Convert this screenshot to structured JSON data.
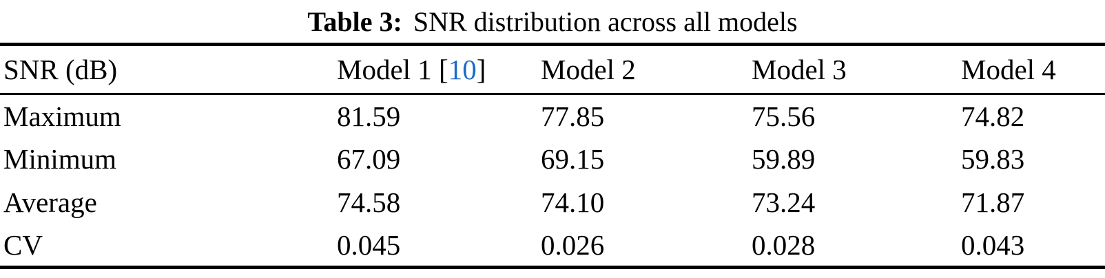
{
  "caption": {
    "label": "Table 3:",
    "text": "SNR distribution across all models"
  },
  "table": {
    "header": {
      "col0": "SNR (dB)",
      "model1_prefix": "Model 1 [",
      "model1_cite": "10",
      "model1_suffix": "]",
      "col2": "Model 2",
      "col3": "Model 3",
      "col4": "Model 4"
    },
    "rows": [
      {
        "label": "Maximum",
        "values": [
          "81.59",
          "77.85",
          "75.56",
          "74.82"
        ]
      },
      {
        "label": "Minimum",
        "values": [
          "67.09",
          "69.15",
          "59.89",
          "59.83"
        ]
      },
      {
        "label": "Average",
        "values": [
          "74.58",
          "74.10",
          "73.24",
          "71.87"
        ]
      },
      {
        "label": "CV",
        "values": [
          "0.045",
          "0.026",
          "0.028",
          "0.043"
        ]
      }
    ]
  },
  "colors": {
    "citation_blue": "#1a6bc9",
    "text": "#000000",
    "rule": "#000000"
  }
}
